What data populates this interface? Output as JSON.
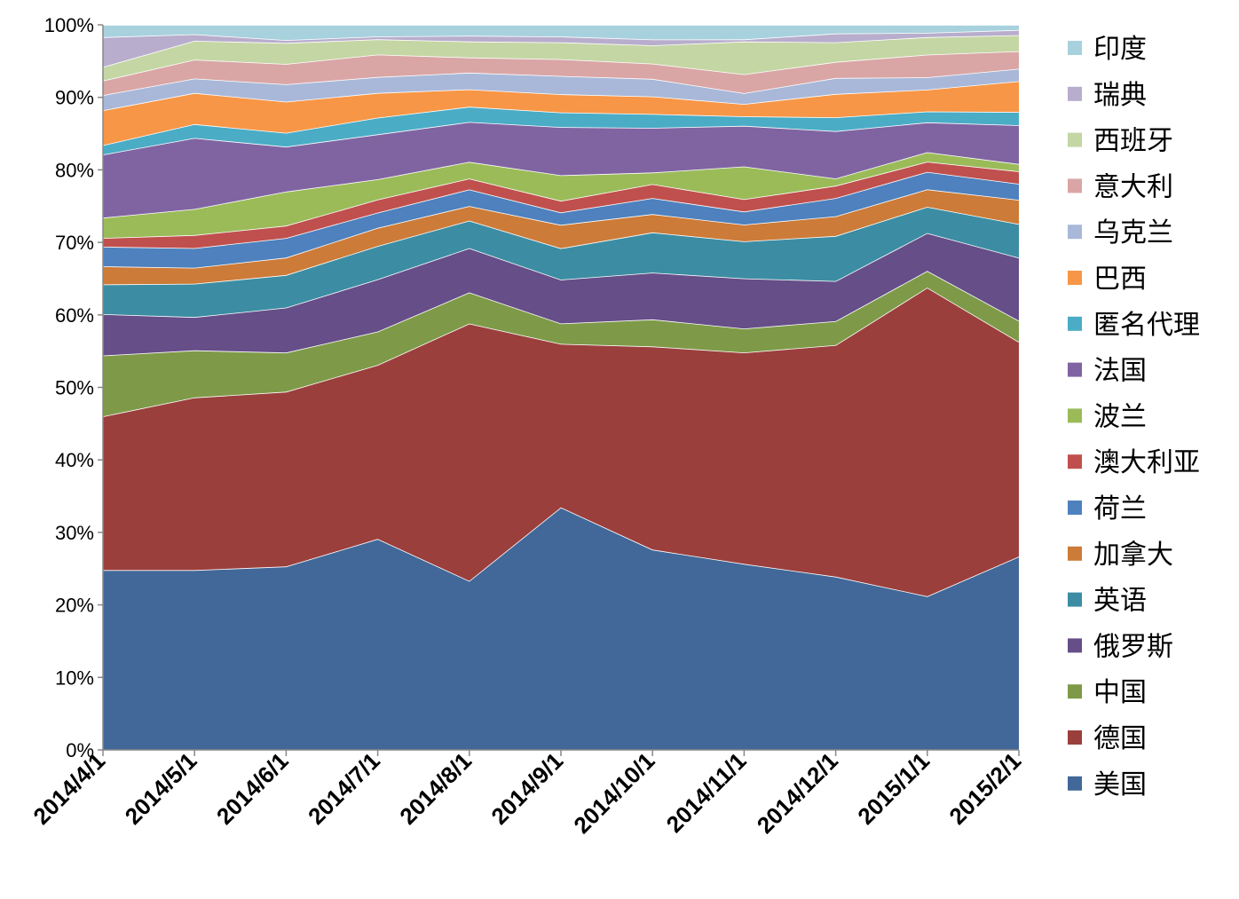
{
  "chart_data": {
    "type": "area",
    "stacked": true,
    "percent": true,
    "title": "",
    "xlabel": "",
    "ylabel": "",
    "ylim": [
      0,
      100
    ],
    "yticks": [
      "0%",
      "10%",
      "20%",
      "30%",
      "40%",
      "50%",
      "60%",
      "70%",
      "80%",
      "90%",
      "100%"
    ],
    "grid": false,
    "legend_position": "right",
    "x": [
      "2014/4/1",
      "2014/5/1",
      "2014/6/1",
      "2014/7/1",
      "2014/8/1",
      "2014/9/1",
      "2014/10/1",
      "2014/11/1",
      "2014/12/1",
      "2015/1/1",
      "2015/2/1"
    ],
    "series": [
      {
        "name": "美国",
        "color": "#416898",
        "values": [
          24.8,
          24.8,
          25.3,
          29.1,
          23.3,
          33.2,
          27.4,
          25.6,
          23.8,
          21.1,
          26.4
        ]
      },
      {
        "name": "德国",
        "color": "#9b3f3d",
        "values": [
          21.2,
          23.8,
          24.1,
          24.0,
          35.5,
          22.4,
          27.8,
          29.1,
          31.8,
          42.4,
          29.3
        ]
      },
      {
        "name": "中国",
        "color": "#7e9a48",
        "values": [
          8.4,
          6.5,
          5.4,
          4.6,
          4.3,
          2.8,
          3.7,
          3.3,
          3.3,
          2.3,
          2.9
        ]
      },
      {
        "name": "俄罗斯",
        "color": "#664e88",
        "values": [
          5.7,
          4.6,
          6.2,
          7.2,
          6.1,
          6.0,
          6.4,
          6.9,
          5.5,
          5.2,
          8.6
        ]
      },
      {
        "name": "英语",
        "color": "#3c8da3",
        "values": [
          4.1,
          4.6,
          4.5,
          4.6,
          3.8,
          4.3,
          5.5,
          5.1,
          6.2,
          3.6,
          4.6
        ]
      },
      {
        "name": "加拿大",
        "color": "#cc7b38",
        "values": [
          2.5,
          2.2,
          2.4,
          2.5,
          2.0,
          3.2,
          2.5,
          2.3,
          2.7,
          2.4,
          3.3
        ]
      },
      {
        "name": "荷兰",
        "color": "#4e81bd",
        "values": [
          2.7,
          2.7,
          2.7,
          2.1,
          2.3,
          1.7,
          2.2,
          1.8,
          2.5,
          2.4,
          2.2
        ]
      },
      {
        "name": "澳大利亚",
        "color": "#c0504d",
        "values": [
          1.2,
          1.8,
          1.7,
          1.8,
          1.5,
          1.6,
          1.9,
          1.7,
          1.7,
          1.4,
          1.7
        ]
      },
      {
        "name": "波兰",
        "color": "#9bbb59",
        "values": [
          2.8,
          3.6,
          4.7,
          2.8,
          2.3,
          3.5,
          1.6,
          4.5,
          1.0,
          1.3,
          1.0
        ]
      },
      {
        "name": "法国",
        "color": "#8064a2",
        "values": [
          8.7,
          9.8,
          6.2,
          6.2,
          5.5,
          6.6,
          6.1,
          5.6,
          6.5,
          4.1,
          5.3
        ]
      },
      {
        "name": "匿名代理",
        "color": "#4bacc6",
        "values": [
          1.3,
          1.9,
          1.9,
          2.3,
          2.1,
          2.0,
          1.9,
          1.3,
          1.9,
          1.5,
          1.8
        ]
      },
      {
        "name": "巴西",
        "color": "#f79646",
        "values": [
          4.8,
          4.3,
          4.3,
          3.4,
          2.4,
          2.5,
          2.4,
          1.7,
          3.2,
          3.0,
          4.2
        ]
      },
      {
        "name": "乌克兰",
        "color": "#a9b8d9",
        "values": [
          2.1,
          2.0,
          2.4,
          2.2,
          2.3,
          2.5,
          2.4,
          1.5,
          2.2,
          1.7,
          1.7
        ]
      },
      {
        "name": "意大利",
        "color": "#d9a6a5",
        "values": [
          2.0,
          2.6,
          2.8,
          3.1,
          2.1,
          2.3,
          2.1,
          2.6,
          2.2,
          3.1,
          2.4
        ]
      },
      {
        "name": "西班牙",
        "color": "#c4d6a4",
        "values": [
          1.9,
          2.6,
          2.9,
          2.1,
          2.2,
          2.3,
          2.5,
          4.5,
          2.7,
          2.4,
          2.2
        ]
      },
      {
        "name": "瑞典",
        "color": "#b8adcc",
        "values": [
          4.1,
          0.9,
          0.4,
          0.4,
          0.8,
          0.8,
          0.8,
          0.3,
          1.2,
          0.6,
          0.7
        ]
      },
      {
        "name": "印度",
        "color": "#a8d1de",
        "values": [
          1.7,
          1.3,
          2.1,
          1.6,
          1.5,
          1.6,
          2.0,
          2.0,
          1.2,
          1.1,
          0.7
        ]
      }
    ]
  }
}
